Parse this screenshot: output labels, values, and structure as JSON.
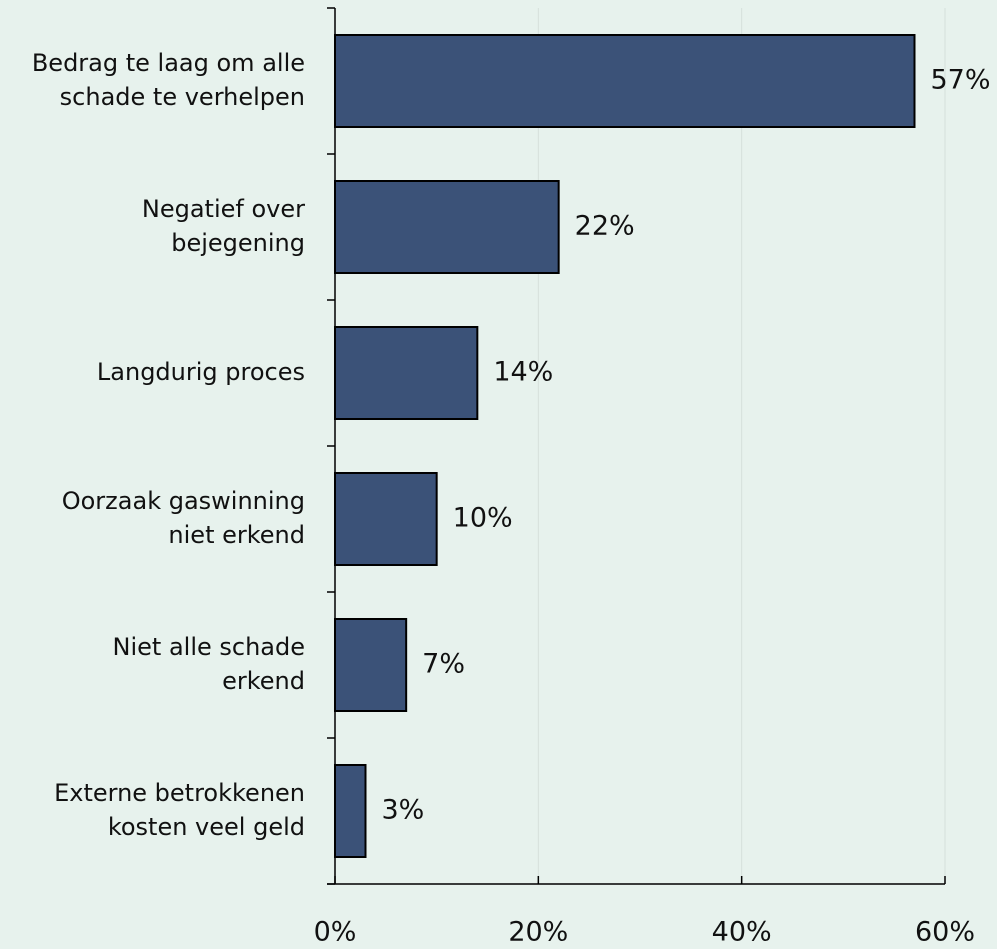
{
  "chart_data": {
    "type": "bar",
    "orientation": "horizontal",
    "categories": [
      [
        "Bedrag te laag om alle",
        "schade te verhelpen"
      ],
      [
        "Negatief over",
        "bejegening"
      ],
      [
        "Langdurig proces"
      ],
      [
        "Oorzaak gaswinning",
        "niet erkend"
      ],
      [
        "Niet alle schade",
        "erkend"
      ],
      [
        "Externe betrokkenen",
        "kosten veel geld"
      ]
    ],
    "values": [
      57,
      22,
      14,
      10,
      7,
      3
    ],
    "value_labels": [
      "57%",
      "22%",
      "14%",
      "10%",
      "7%",
      "3%"
    ],
    "color": "#3b5278",
    "xlim": [
      0,
      60
    ],
    "xticks": [
      {
        "value": 0,
        "label": "0%"
      },
      {
        "value": 20,
        "label": "20%"
      },
      {
        "value": 40,
        "label": "40%"
      },
      {
        "value": 60,
        "label": "60%"
      }
    ],
    "grid": true
  }
}
